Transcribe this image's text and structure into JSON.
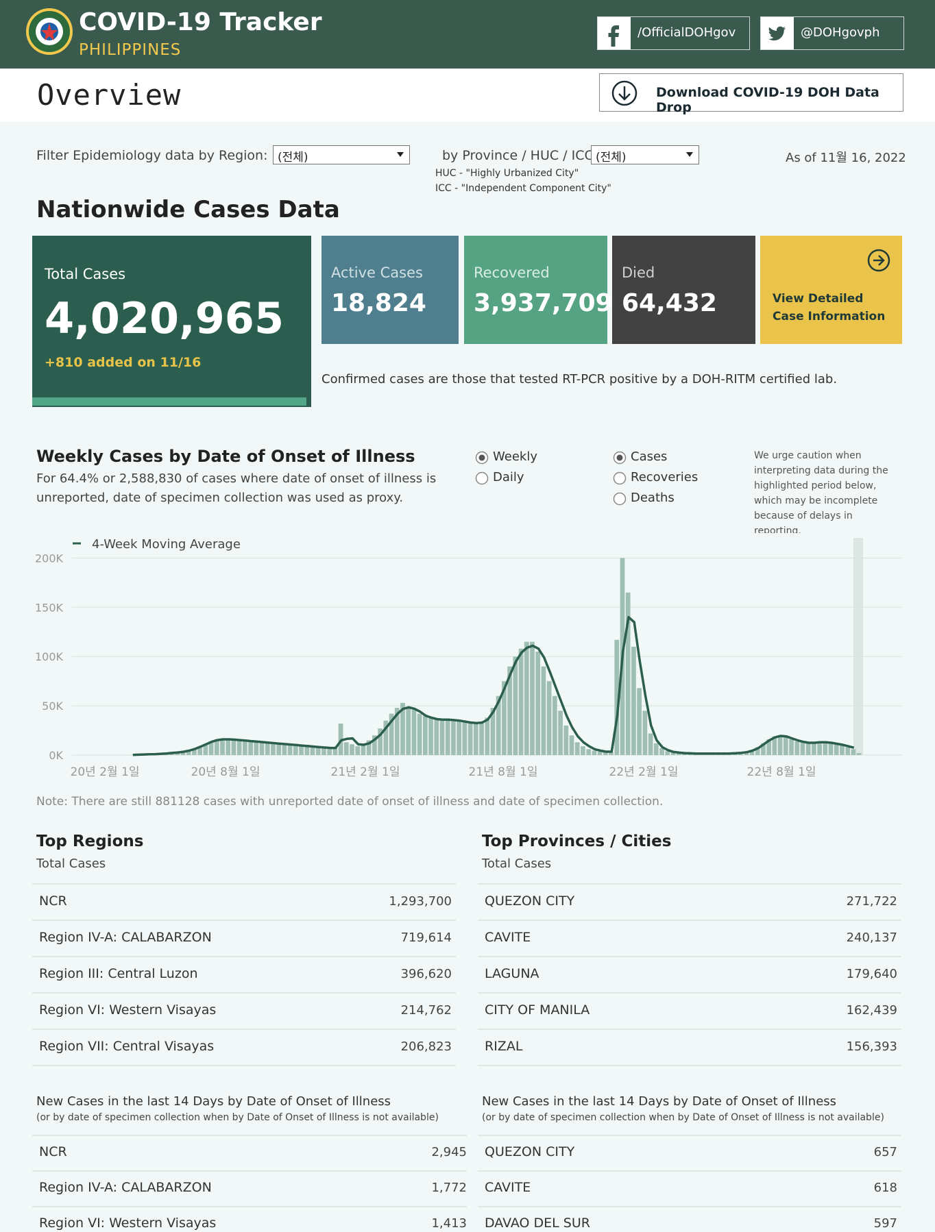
{
  "header": {
    "title": "COVID-19 Tracker",
    "subtitle": "PHILIPPINES",
    "facebook": "/OfficialDOHgov",
    "twitter": "@DOHgovph",
    "bg_color": "#3a5a4e",
    "accent_color": "#f2c94c"
  },
  "topbar": {
    "page_title": "Overview",
    "download_label": "Download COVID-19 DOH Data Drop"
  },
  "filters": {
    "region_label": "Filter Epidemiology data by Region:",
    "region_value": "(전체)",
    "province_label": "by Province / HUC / ICC:",
    "province_value": "(전체)",
    "huc_note": "HUC - \"Highly Urbanized City\"",
    "icc_note": "ICC - \"Independent Component City\"",
    "as_of": "As of 11월 16, 2022"
  },
  "nationwide": {
    "title": "Nationwide Cases Data",
    "total_label": "Total Cases",
    "total_value": "4,020,965",
    "added": "+810 added on 11/16",
    "active_label": "Active Cases",
    "active_value": "18,824",
    "recovered_label": "Recovered",
    "recovered_value": "3,937,709",
    "died_label": "Died",
    "died_value": "64,432",
    "detail_line1": "View Detailed",
    "detail_line2": "Case Information",
    "confirmed_note": "Confirmed cases are those that tested RT-PCR positive by a DOH-RITM certified lab."
  },
  "weekly": {
    "title": "Weekly Cases by Date of Onset of Illness",
    "desc_line1": "For 64.4% or 2,588,830 of cases where date of onset of illness is",
    "desc_line2": "unreported, date of specimen collection was used as proxy.",
    "radio_period": [
      {
        "label": "Weekly",
        "selected": true
      },
      {
        "label": "Daily",
        "selected": false
      }
    ],
    "radio_metric": [
      {
        "label": "Cases",
        "selected": true
      },
      {
        "label": "Recoveries",
        "selected": false
      },
      {
        "label": "Deaths",
        "selected": false
      }
    ],
    "caution": [
      "We urge caution when",
      "interpreting data during the",
      "highlighted period below,",
      "which may be incomplete",
      "because of delays in",
      "reporting."
    ],
    "legend": "4-Week Moving Average",
    "note": "Note: There are still 881128 cases with unreported date of onset of illness and date of specimen collection."
  },
  "chart_data": {
    "type": "bar",
    "title": "Weekly Cases by Date of Onset of Illness",
    "y_ticks": [
      "200K",
      "150K",
      "100K",
      "50K",
      "0K"
    ],
    "x_ticks": [
      "20년 2월 1일",
      "20년 8월 1일",
      "21년 2월 1일",
      "21년 8월 1일",
      "22년 2월 1일",
      "22년 8월 1일"
    ],
    "ylim": [
      0,
      210000
    ],
    "series": [
      {
        "name": "Cases",
        "type": "bar",
        "values": [
          0,
          0,
          0,
          200,
          500,
          800,
          1000,
          1200,
          1500,
          2000,
          2500,
          3000,
          3500,
          4500,
          6000,
          8000,
          11000,
          14000,
          16000,
          16500,
          16000,
          15500,
          15000,
          14500,
          14000,
          13500,
          13000,
          12500,
          12000,
          11500,
          11000,
          10500,
          10000,
          9500,
          9000,
          8500,
          8000,
          7500,
          7000,
          7000,
          32000,
          13000,
          11000,
          9000,
          10000,
          15000,
          20000,
          27000,
          35000,
          42000,
          48000,
          53000,
          49000,
          46000,
          42000,
          40000,
          38000,
          37000,
          36000,
          37000,
          36000,
          35000,
          34000,
          33000,
          32000,
          33000,
          38000,
          48000,
          60000,
          75000,
          90000,
          100000,
          108000,
          115000,
          115000,
          105000,
          90000,
          75000,
          60000,
          45000,
          30000,
          20000,
          13000,
          9000,
          6000,
          4500,
          3500,
          3000,
          3000,
          117000,
          200000,
          165000,
          110000,
          68000,
          45000,
          22000,
          12000,
          7000,
          4000,
          2500,
          2000,
          1800,
          1600,
          1500,
          1500,
          1500,
          1500,
          1600,
          1700,
          1800,
          2000,
          2500,
          3500,
          5000,
          8000,
          12000,
          16000,
          19000,
          20000,
          18000,
          16000,
          14000,
          13000,
          12000,
          13000,
          14000,
          13000,
          12000,
          11000,
          10000,
          8000,
          6000,
          2000
        ]
      },
      {
        "name": "4-Week Moving Average",
        "type": "line",
        "values": [
          null,
          null,
          null,
          200,
          400,
          600,
          800,
          1000,
          1300,
          1700,
          2200,
          2700,
          3400,
          4500,
          6200,
          8500,
          11000,
          13500,
          15200,
          16000,
          16000,
          15700,
          15200,
          14800,
          14200,
          13700,
          13200,
          12700,
          12200,
          11700,
          11200,
          10700,
          10200,
          9700,
          9200,
          8700,
          8200,
          7700,
          7300,
          7200,
          15000,
          16500,
          17000,
          11000,
          10500,
          12000,
          16000,
          21000,
          28000,
          35000,
          42000,
          47000,
          48500,
          47000,
          44000,
          40000,
          38000,
          36500,
          36000,
          36000,
          35500,
          35000,
          34000,
          33000,
          32500,
          33000,
          36000,
          44000,
          55000,
          68000,
          82000,
          95000,
          104000,
          109000,
          111000,
          108000,
          99000,
          85000,
          70000,
          55000,
          40000,
          28000,
          19000,
          13000,
          9000,
          6000,
          4500,
          3500,
          3500,
          40000,
          105000,
          140000,
          135000,
          95000,
          60000,
          30000,
          15000,
          8000,
          5000,
          3200,
          2500,
          2000,
          1800,
          1600,
          1500,
          1500,
          1500,
          1500,
          1600,
          1700,
          1900,
          2300,
          3000,
          4500,
          7000,
          11000,
          15000,
          18000,
          19500,
          19000,
          17000,
          15000,
          13500,
          12500,
          12500,
          13000,
          13000,
          12500,
          11500,
          10500,
          9000,
          7500,
          null
        ]
      }
    ]
  },
  "top_regions": {
    "title": "Top Regions",
    "subtitle": "Total Cases",
    "rows": [
      {
        "name": "NCR",
        "value": "1,293,700"
      },
      {
        "name": "Region IV-A: CALABARZON",
        "value": "719,614"
      },
      {
        "name": "Region III: Central Luzon",
        "value": "396,620"
      },
      {
        "name": "Region VI: Western Visayas",
        "value": "214,762"
      },
      {
        "name": "Region VII: Central Visayas",
        "value": "206,823"
      }
    ]
  },
  "top_provinces": {
    "title": "Top Provinces / Cities",
    "subtitle": "Total Cases",
    "rows": [
      {
        "name": "QUEZON CITY",
        "value": "271,722"
      },
      {
        "name": "CAVITE",
        "value": "240,137"
      },
      {
        "name": "LAGUNA",
        "value": "179,640"
      },
      {
        "name": "CITY OF MANILA",
        "value": "162,439"
      },
      {
        "name": "RIZAL",
        "value": "156,393"
      }
    ]
  },
  "new14_regions": {
    "title": "New Cases in the last 14 Days by Date of Onset of Illness",
    "subtitle": "(or by date of specimen collection when by Date of Onset of Illness is not available)",
    "rows": [
      {
        "name": "NCR",
        "value": "2,945"
      },
      {
        "name": "Region IV-A: CALABARZON",
        "value": "1,772"
      },
      {
        "name": "Region VI: Western Visayas",
        "value": "1,413"
      }
    ]
  },
  "new14_provinces": {
    "title": "New Cases in the last 14 Days by Date of Onset of Illness",
    "subtitle": "(or by date of specimen collection when by Date of Onset of Illness is not available)",
    "rows": [
      {
        "name": "QUEZON CITY",
        "value": "657"
      },
      {
        "name": "CAVITE",
        "value": "618"
      },
      {
        "name": "DAVAO DEL SUR",
        "value": "597"
      }
    ]
  }
}
